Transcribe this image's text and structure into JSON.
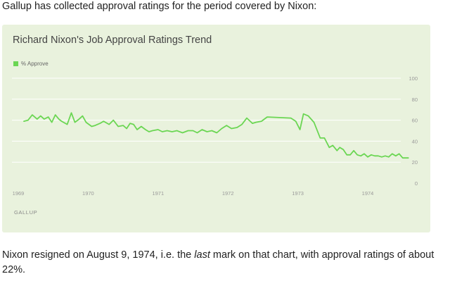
{
  "intro_text": "Gallup has collected approval ratings for the period covered by Nixon:",
  "footnote": {
    "prefix": "Nixon resigned on August 9, 1974, i.e. the ",
    "emphasis": "last",
    "suffix": " mark on that chart, with approval ratings of about 22%."
  },
  "colors": {
    "card_bg": "#e9f2dd",
    "line": "#6bd653",
    "grid": "#ffffff",
    "axis_text": "#999999"
  },
  "chart_data": {
    "type": "line",
    "title": "Richard Nixon's Job Approval Ratings Trend",
    "source": "GALLUP",
    "xlabel": "",
    "ylabel": "",
    "xlim": [
      1969,
      1974.9
    ],
    "ylim": [
      0,
      100
    ],
    "yticks": [
      0,
      20,
      40,
      60,
      80,
      100
    ],
    "xticks": [
      1969,
      1970,
      1971,
      1972,
      1973,
      1974
    ],
    "grid": true,
    "legend_position": "top-left",
    "series": [
      {
        "name": "% Approve",
        "color": "#6bd653",
        "x": [
          1969.08,
          1969.14,
          1969.2,
          1969.27,
          1969.32,
          1969.37,
          1969.43,
          1969.48,
          1969.53,
          1969.58,
          1969.62,
          1969.7,
          1969.76,
          1969.81,
          1969.87,
          1969.92,
          1969.97,
          1970.05,
          1970.1,
          1970.17,
          1970.22,
          1970.3,
          1970.36,
          1970.43,
          1970.5,
          1970.55,
          1970.6,
          1970.65,
          1970.7,
          1970.76,
          1970.82,
          1970.87,
          1970.92,
          1971.0,
          1971.06,
          1971.13,
          1971.2,
          1971.27,
          1971.35,
          1971.43,
          1971.5,
          1971.56,
          1971.63,
          1971.7,
          1971.77,
          1971.84,
          1971.91,
          1971.98,
          1972.05,
          1972.13,
          1972.2,
          1972.27,
          1972.35,
          1972.4,
          1972.48,
          1972.56,
          1972.9,
          1972.97,
          1973.03,
          1973.08,
          1973.15,
          1973.23,
          1973.32,
          1973.38,
          1973.45,
          1973.5,
          1973.56,
          1973.6,
          1973.65,
          1973.7,
          1973.75,
          1973.8,
          1973.85,
          1973.9,
          1973.95,
          1974.0,
          1974.05,
          1974.1,
          1974.15,
          1974.2,
          1974.25,
          1974.3,
          1974.35,
          1974.4,
          1974.45,
          1974.5,
          1974.55,
          1974.58
        ],
        "values": [
          59,
          60,
          65,
          61,
          64,
          61,
          63,
          58,
          65,
          61,
          59,
          56,
          67,
          58,
          61,
          64,
          58,
          54,
          55,
          57,
          59,
          56,
          60,
          54,
          55,
          52,
          57,
          56,
          51,
          54,
          51,
          49,
          50,
          51,
          49,
          50,
          49,
          50,
          48,
          50,
          50,
          48,
          51,
          49,
          50,
          48,
          52,
          55,
          52,
          53,
          56,
          62,
          57,
          58,
          59,
          63,
          62,
          59,
          51,
          66,
          64,
          58,
          43,
          43,
          34,
          36,
          31,
          34,
          32,
          27,
          27,
          31,
          27,
          26,
          28,
          25,
          27,
          26,
          26,
          25,
          26,
          25,
          28,
          26,
          28,
          24,
          24,
          24
        ]
      }
    ]
  }
}
